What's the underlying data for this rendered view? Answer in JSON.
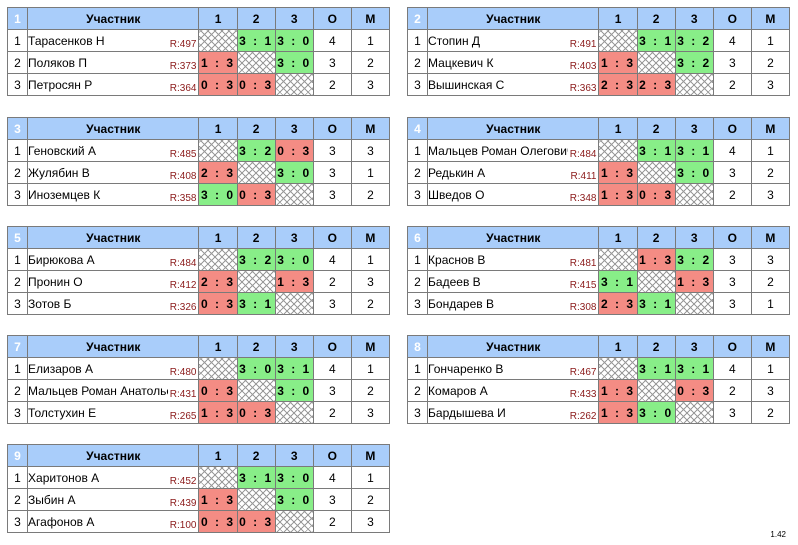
{
  "header": {
    "participant_label": "Участник",
    "cols": [
      "1",
      "2",
      "3"
    ],
    "points_label": "О",
    "place_label": "М"
  },
  "groups": [
    {
      "num": "1",
      "players": [
        {
          "pos": "1",
          "name": "Тарасенков Н",
          "rating": "R:497",
          "scores": [
            "",
            "3 : 1",
            "3 : 0"
          ],
          "points": "4",
          "place": "1"
        },
        {
          "pos": "2",
          "name": "Поляков П",
          "rating": "R:373",
          "scores": [
            "1 : 3",
            "",
            "3 : 0"
          ],
          "points": "3",
          "place": "2"
        },
        {
          "pos": "3",
          "name": "Петросян Р",
          "rating": "R:364",
          "scores": [
            "0 : 3",
            "0 : 3",
            ""
          ],
          "points": "2",
          "place": "3"
        }
      ]
    },
    {
      "num": "2",
      "players": [
        {
          "pos": "1",
          "name": "Стопин Д",
          "rating": "R:491",
          "scores": [
            "",
            "3 : 1",
            "3 : 2"
          ],
          "points": "4",
          "place": "1"
        },
        {
          "pos": "2",
          "name": "Мацкевич К",
          "rating": "R:403",
          "scores": [
            "1 : 3",
            "",
            "3 : 2"
          ],
          "points": "3",
          "place": "2"
        },
        {
          "pos": "3",
          "name": "Вышинская С",
          "rating": "R:363",
          "scores": [
            "2 : 3",
            "2 : 3",
            ""
          ],
          "points": "2",
          "place": "3"
        }
      ]
    },
    {
      "num": "3",
      "players": [
        {
          "pos": "1",
          "name": "Геновский А",
          "rating": "R:485",
          "scores": [
            "",
            "3 : 2",
            "0 : 3"
          ],
          "points": "3",
          "place": "3"
        },
        {
          "pos": "2",
          "name": "Жулябин В",
          "rating": "R:408",
          "scores": [
            "2 : 3",
            "",
            "3 : 0"
          ],
          "points": "3",
          "place": "1"
        },
        {
          "pos": "3",
          "name": "Иноземцев К",
          "rating": "R:358",
          "scores": [
            "3 : 0",
            "0 : 3",
            ""
          ],
          "points": "3",
          "place": "2"
        }
      ]
    },
    {
      "num": "4",
      "players": [
        {
          "pos": "1",
          "name": "Мальцев Роман Олегович",
          "rating": "R:484",
          "scores": [
            "",
            "3 : 1",
            "3 : 1"
          ],
          "points": "4",
          "place": "1"
        },
        {
          "pos": "2",
          "name": "Редькин А",
          "rating": "R:411",
          "scores": [
            "1 : 3",
            "",
            "3 : 0"
          ],
          "points": "3",
          "place": "2"
        },
        {
          "pos": "3",
          "name": "Шведов О",
          "rating": "R:348",
          "scores": [
            "1 : 3",
            "0 : 3",
            ""
          ],
          "points": "2",
          "place": "3"
        }
      ]
    },
    {
      "num": "5",
      "players": [
        {
          "pos": "1",
          "name": "Бирюкова А",
          "rating": "R:484",
          "scores": [
            "",
            "3 : 2",
            "3 : 0"
          ],
          "points": "4",
          "place": "1"
        },
        {
          "pos": "2",
          "name": "Пронин О",
          "rating": "R:412",
          "scores": [
            "2 : 3",
            "",
            "1 : 3"
          ],
          "points": "2",
          "place": "3"
        },
        {
          "pos": "3",
          "name": "Зотов Б",
          "rating": "R:326",
          "scores": [
            "0 : 3",
            "3 : 1",
            ""
          ],
          "points": "3",
          "place": "2"
        }
      ]
    },
    {
      "num": "6",
      "players": [
        {
          "pos": "1",
          "name": "Краснов В",
          "rating": "R:481",
          "scores": [
            "",
            "1 : 3",
            "3 : 2"
          ],
          "points": "3",
          "place": "3"
        },
        {
          "pos": "2",
          "name": "Бадеев В",
          "rating": "R:415",
          "scores": [
            "3 : 1",
            "",
            "1 : 3"
          ],
          "points": "3",
          "place": "2"
        },
        {
          "pos": "3",
          "name": "Бондарев В",
          "rating": "R:308",
          "scores": [
            "2 : 3",
            "3 : 1",
            ""
          ],
          "points": "3",
          "place": "1"
        }
      ]
    },
    {
      "num": "7",
      "players": [
        {
          "pos": "1",
          "name": "Елизаров А",
          "rating": "R:480",
          "scores": [
            "",
            "3 : 0",
            "3 : 1"
          ],
          "points": "4",
          "place": "1"
        },
        {
          "pos": "2",
          "name": "Мальцев Роман Анатольевич",
          "rating": "R:431",
          "scores": [
            "0 : 3",
            "",
            "3 : 0"
          ],
          "points": "3",
          "place": "2"
        },
        {
          "pos": "3",
          "name": "Толстухин Е",
          "rating": "R:265",
          "scores": [
            "1 : 3",
            "0 : 3",
            ""
          ],
          "points": "2",
          "place": "3"
        }
      ]
    },
    {
      "num": "8",
      "players": [
        {
          "pos": "1",
          "name": "Гончаренко В",
          "rating": "R:467",
          "scores": [
            "",
            "3 : 1",
            "3 : 1"
          ],
          "points": "4",
          "place": "1"
        },
        {
          "pos": "2",
          "name": "Комаров А",
          "rating": "R:433",
          "scores": [
            "1 : 3",
            "",
            "0 : 3"
          ],
          "points": "2",
          "place": "3"
        },
        {
          "pos": "3",
          "name": "Бардышева И",
          "rating": "R:262",
          "scores": [
            "1 : 3",
            "3 : 0",
            ""
          ],
          "points": "3",
          "place": "2"
        }
      ]
    },
    {
      "num": "9",
      "players": [
        {
          "pos": "1",
          "name": "Харитонов А",
          "rating": "R:452",
          "scores": [
            "",
            "3 : 1",
            "3 : 0"
          ],
          "points": "4",
          "place": "1"
        },
        {
          "pos": "2",
          "name": "Зыбин А",
          "rating": "R:439",
          "scores": [
            "1 : 3",
            "",
            "3 : 0"
          ],
          "points": "3",
          "place": "2"
        },
        {
          "pos": "3",
          "name": "Агафонов А",
          "rating": "R:100",
          "scores": [
            "0 : 3",
            "0 : 3",
            ""
          ],
          "points": "2",
          "place": "3"
        }
      ]
    }
  ],
  "footer": {
    "version": "1.42"
  },
  "colors": {
    "header_bg": "#a9cdfa",
    "group_num_bg": "#3a3a3a",
    "win_bg": "#88ee88",
    "loss_bg": "#f48c84",
    "rating_text": "#8b1a1a"
  }
}
